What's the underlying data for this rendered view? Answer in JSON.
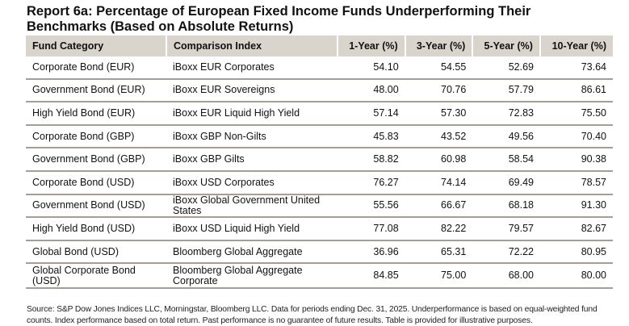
{
  "title": "Report 6a: Percentage of European Fixed Income Funds Underperforming Their Benchmarks (Based on Absolute Returns)",
  "table": {
    "headers": [
      "Fund Category",
      "Comparison Index",
      "1-Year (%)",
      "3-Year (%)",
      "5-Year (%)",
      "10-Year (%)"
    ],
    "rows": [
      [
        "Corporate Bond (EUR)",
        "iBoxx EUR Corporates",
        "54.10",
        "54.55",
        "52.69",
        "73.64"
      ],
      [
        "Government Bond (EUR)",
        "iBoxx EUR Sovereigns",
        "48.00",
        "70.76",
        "57.79",
        "86.61"
      ],
      [
        "High Yield Bond (EUR)",
        "iBoxx EUR Liquid High Yield",
        "57.14",
        "57.30",
        "72.83",
        "75.50"
      ],
      [
        "Corporate Bond (GBP)",
        "iBoxx GBP Non-Gilts",
        "45.83",
        "43.52",
        "49.56",
        "70.40"
      ],
      [
        "Government Bond (GBP)",
        "iBoxx GBP Gilts",
        "58.82",
        "60.98",
        "58.54",
        "90.38"
      ],
      [
        "Corporate Bond (USD)",
        "iBoxx USD Corporates",
        "76.27",
        "74.14",
        "69.49",
        "78.57"
      ],
      [
        "Government Bond (USD)",
        "iBoxx Global Government United States",
        "55.56",
        "66.67",
        "68.18",
        "91.30"
      ],
      [
        "High Yield Bond (USD)",
        "iBoxx USD Liquid High Yield",
        "77.08",
        "82.22",
        "79.57",
        "82.67"
      ],
      [
        "Global Bond (USD)",
        "Bloomberg Global Aggregate",
        "36.96",
        "65.31",
        "72.22",
        "80.95"
      ],
      [
        "Global Corporate Bond (USD)",
        "Bloomberg Global Aggregate Corporate",
        "84.85",
        "75.00",
        "68.00",
        "80.00"
      ]
    ]
  },
  "footer": "Source: S&P Dow Jones Indices LLC, Morningstar, Bloomberg LLC.  Data for periods ending Dec. 31, 2025.  Underperformance is based on equal-weighted fund counts.  Index performance based on total return.  Past performance is no guarantee of future results.  Table is provided for illustrative purposes.",
  "colors": {
    "header_bg": "#d9d5cc",
    "row_rule": "#a59e94"
  }
}
